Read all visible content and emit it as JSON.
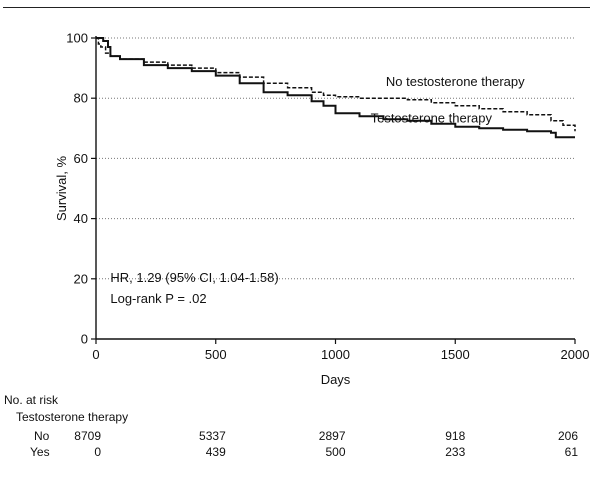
{
  "chart_data": {
    "type": "line",
    "ylabel": "Survival, %",
    "xlabel": "Days",
    "xlim": [
      0,
      2000
    ],
    "ylim": [
      0,
      100
    ],
    "x_ticks": [
      0,
      500,
      1000,
      1500,
      2000
    ],
    "y_ticks": [
      0,
      20,
      40,
      60,
      80,
      100
    ],
    "grid": "horizontal-dotted",
    "series": [
      {
        "name": "No testosterone therapy",
        "style": "dashed",
        "x": [
          0,
          10,
          20,
          40,
          60,
          100,
          200,
          300,
          400,
          500,
          600,
          700,
          800,
          900,
          950,
          1000,
          1100,
          1200,
          1300,
          1400,
          1500,
          1600,
          1700,
          1800,
          1900,
          1950,
          2000
        ],
        "y": [
          100,
          98,
          97,
          95,
          94,
          93,
          92,
          91,
          90,
          88.5,
          87,
          85,
          83.5,
          82,
          81,
          80.5,
          80,
          80,
          79.5,
          78.5,
          77.5,
          76.5,
          75.5,
          74.5,
          72.5,
          71,
          69
        ]
      },
      {
        "name": "Testosterone therapy",
        "style": "solid",
        "x": [
          0,
          10,
          20,
          30,
          50,
          60,
          100,
          200,
          300,
          400,
          500,
          600,
          700,
          800,
          900,
          950,
          1000,
          1100,
          1200,
          1300,
          1400,
          1500,
          1600,
          1700,
          1800,
          1900,
          1920,
          1950,
          2000
        ],
        "y": [
          100,
          100,
          100,
          99,
          97,
          94,
          93,
          91,
          90,
          89,
          87.5,
          85,
          82,
          81,
          79,
          77.5,
          75,
          74,
          73,
          72.5,
          71.5,
          70.5,
          70,
          69.5,
          69,
          68.5,
          67,
          67,
          67
        ]
      }
    ],
    "series_labels": [
      {
        "text": "No testosterone therapy",
        "x": 1500,
        "y": 84
      },
      {
        "text": "Testosterone therapy",
        "x": 1400,
        "y": 72
      }
    ],
    "annotations": [
      {
        "text": "HR, 1.29 (95% CI, 1.04-1.58)",
        "x": 60,
        "y": 19
      },
      {
        "text": "Log-rank P = .02",
        "x": 60,
        "y": 12
      }
    ]
  },
  "risk_table": {
    "title": "No. at risk",
    "group_label": "Testosterone therapy",
    "rows": [
      {
        "label": "No",
        "values": [
          "8709",
          "5337",
          "2897",
          "918",
          "206"
        ]
      },
      {
        "label": "Yes",
        "values": [
          "0",
          "439",
          "500",
          "233",
          "61"
        ]
      }
    ]
  }
}
